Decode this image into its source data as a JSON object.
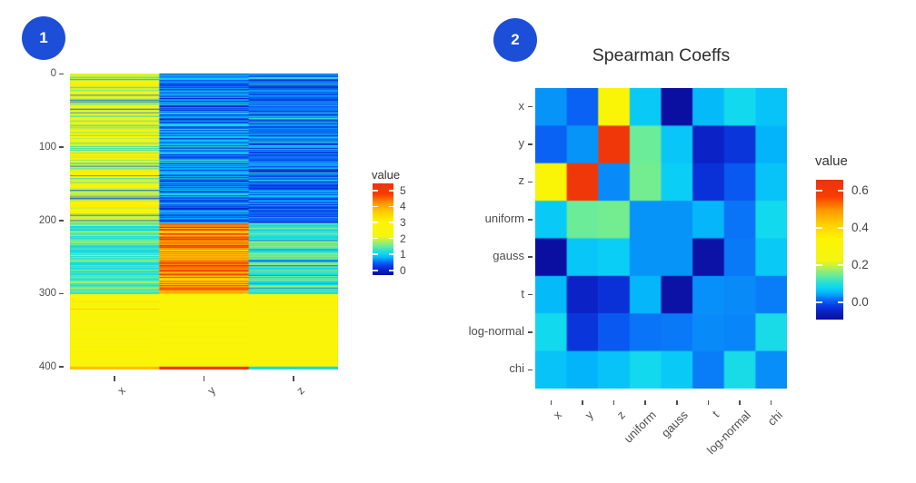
{
  "page": {
    "background": "#ffffff"
  },
  "panel1": {
    "badge": "1",
    "badge_color": "#1d4ed8"
  },
  "panel2": {
    "badge": "2",
    "badge_color": "#1d4ed8",
    "title": "Spearman Coeffs"
  },
  "colormap": {
    "name": "jet-rainbow",
    "stops": [
      [
        0.0,
        "#0B0E9E"
      ],
      [
        0.06,
        "#0A23C8"
      ],
      [
        0.11,
        "#0845EC"
      ],
      [
        0.15,
        "#0A74F8"
      ],
      [
        0.19,
        "#04B4FA"
      ],
      [
        0.23,
        "#0CD8F4"
      ],
      [
        0.27,
        "#2FE0CC"
      ],
      [
        0.31,
        "#62EBA0"
      ],
      [
        0.36,
        "#A5EF62"
      ],
      [
        0.42,
        "#F2F513"
      ],
      [
        0.58,
        "#FFF400"
      ],
      [
        0.68,
        "#FFD000"
      ],
      [
        0.78,
        "#FE9900"
      ],
      [
        0.88,
        "#FA3C00"
      ],
      [
        1.0,
        "#E93412"
      ]
    ]
  },
  "chart_data": [
    {
      "id": "random-series-heatmap",
      "type": "heatmap",
      "title": "",
      "columns": [
        "x",
        "y",
        "z"
      ],
      "n_rows": 404,
      "y_axis_ticks": [
        {
          "label": "0",
          "value": 0
        },
        {
          "label": "100",
          "value": 100
        },
        {
          "label": "200",
          "value": 200
        },
        {
          "label": "300",
          "value": 300
        },
        {
          "label": "400",
          "value": 400
        }
      ],
      "legend": {
        "title": "value",
        "domain": [
          -0.3,
          5.45
        ],
        "ticks": [
          {
            "label": "5",
            "value": 5
          },
          {
            "label": "4",
            "value": 4
          },
          {
            "label": "3",
            "value": 3
          },
          {
            "label": "2",
            "value": 2
          },
          {
            "label": "1",
            "value": 1
          },
          {
            "label": "0",
            "value": 0
          }
        ]
      },
      "seed": 20240711,
      "row_bands": [
        {
          "from": 0,
          "to": 204,
          "cols": {
            "x": [
              [
                2.25,
                3.2,
                0.6
              ],
              [
                1.35,
                2.0,
                0.27
              ],
              [
                0.9,
                1.3,
                0.07
              ],
              [
                0.25,
                0.7,
                0.06
              ]
            ],
            "y": [
              [
                0.15,
                0.65,
                0.45
              ],
              [
                0.65,
                1.1,
                0.45
              ],
              [
                0.0,
                0.12,
                0.06
              ],
              [
                1.2,
                1.5,
                0.04
              ]
            ],
            "z": [
              [
                0.1,
                0.55,
                0.55
              ],
              [
                0.55,
                1.0,
                0.38
              ],
              [
                1.1,
                1.45,
                0.07
              ]
            ]
          }
        },
        {
          "from": 204,
          "to": 301,
          "cols": {
            "x": [
              [
                0.95,
                1.75,
                0.95
              ],
              [
                2.0,
                2.3,
                0.05
              ]
            ],
            "y": [
              [
                3.6,
                5.2,
                0.8
              ],
              [
                3.0,
                3.5,
                0.15
              ],
              [
                5.25,
                5.45,
                0.05
              ]
            ],
            "z": [
              [
                0.95,
                1.85,
                0.88
              ],
              [
                0.45,
                0.75,
                0.12
              ]
            ]
          }
        },
        {
          "from": 301,
          "to": 323,
          "cols": {
            "x": [
              [
                2.45,
                2.8,
                0.78
              ],
              [
                3.2,
                3.9,
                0.22
              ]
            ],
            "y": [
              [
                2.5,
                2.85,
                1
              ]
            ],
            "z": [
              [
                2.45,
                2.8,
                1
              ]
            ]
          }
        },
        {
          "from": 323,
          "to": 400,
          "cols": {
            "x": [
              [
                2.45,
                2.85,
                1
              ]
            ],
            "y": [
              [
                2.5,
                2.85,
                1
              ]
            ],
            "z": [
              [
                2.45,
                2.85,
                1
              ]
            ]
          }
        },
        {
          "from": 400,
          "to": 404,
          "cols": {
            "x": [
              [
                3.65,
                3.85,
                1
              ]
            ],
            "y": [
              [
                5.0,
                5.3,
                1
              ]
            ],
            "z": [
              [
                1.0,
                1.2,
                1
              ]
            ]
          }
        }
      ]
    },
    {
      "id": "spearman-coeffs-heatmap",
      "type": "heatmap",
      "title": "Spearman Coeffs",
      "categories": [
        "x",
        "y",
        "z",
        "uniform",
        "gauss",
        "t",
        "log-normal",
        "chi"
      ],
      "matrix": [
        [
          0.035,
          0.008,
          0.3,
          0.068,
          -0.09,
          0.055,
          0.085,
          0.062
        ],
        [
          0.008,
          0.035,
          0.62,
          0.145,
          0.065,
          -0.05,
          -0.028,
          0.05
        ],
        [
          0.3,
          0.62,
          0.03,
          0.15,
          0.072,
          -0.032,
          0.002,
          0.062
        ],
        [
          0.068,
          0.145,
          0.15,
          0.035,
          0.035,
          0.052,
          0.02,
          0.085
        ],
        [
          -0.09,
          0.065,
          0.072,
          0.035,
          0.035,
          -0.085,
          0.022,
          0.068
        ],
        [
          0.055,
          -0.05,
          -0.032,
          0.052,
          -0.085,
          0.033,
          0.03,
          0.024
        ],
        [
          0.085,
          -0.028,
          0.002,
          0.02,
          0.022,
          0.03,
          0.028,
          0.09
        ],
        [
          0.062,
          0.05,
          0.062,
          0.085,
          0.068,
          0.024,
          0.09,
          0.032
        ]
      ],
      "legend": {
        "title": "value",
        "domain": [
          -0.093,
          0.659
        ],
        "ticks": [
          {
            "label": "0.6",
            "value": 0.6
          },
          {
            "label": "0.4",
            "value": 0.4
          },
          {
            "label": "0.2",
            "value": 0.2
          },
          {
            "label": "0.0",
            "value": 0.0
          }
        ]
      }
    }
  ]
}
